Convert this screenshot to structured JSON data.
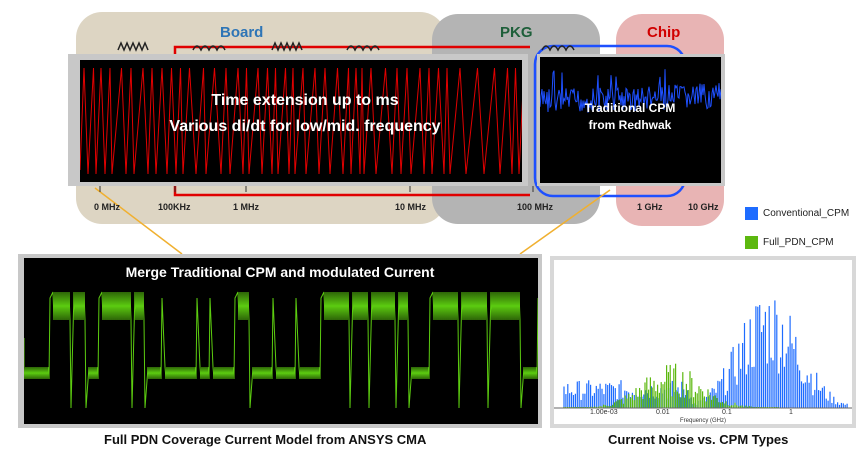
{
  "regions": {
    "board": {
      "label": "Board",
      "color": "#2e75b6"
    },
    "pkg": {
      "label": "PKG",
      "color": "#1e5f3a"
    },
    "chip": {
      "label": "Chip",
      "color": "#d10000"
    }
  },
  "frequency_axis": [
    "0 MHz",
    "100KHz",
    "1 MHz",
    "10 MHz",
    "100 MHz",
    "1 GHz",
    "10 GHz"
  ],
  "top_left_panel": {
    "line1": "Time extension up to ms",
    "line2": "Various di/dt for low/mid. frequency"
  },
  "top_right_panel": {
    "line1": "Traditional CPM",
    "line2": "from Redhwak"
  },
  "bottom_left_panel": {
    "title": "Merge Traditional CPM and modulated Current",
    "caption": "Full PDN Coverage Current Model from ANSYS CMA"
  },
  "bottom_right_panel": {
    "caption": "Current Noise vs. CPM Types",
    "legend": [
      {
        "label": "Conventional_CPM",
        "color": "#1e6cff"
      },
      {
        "label": "Full_PDN_CPM",
        "color": "#5cb80f"
      }
    ],
    "x_ticks": [
      "1.00e-03",
      "0.01",
      "0.1",
      "1"
    ],
    "x_label": "Frequency (GHz)"
  },
  "colors": {
    "board_bg": "#ddd5c3",
    "pkg_bg": "#b4b4b4",
    "chip_bg": "#e8b4b4",
    "red_line": "#e00000",
    "blue_line": "#1e50ff",
    "green_wave": "#5ccc10",
    "connector": "#f0b030"
  }
}
